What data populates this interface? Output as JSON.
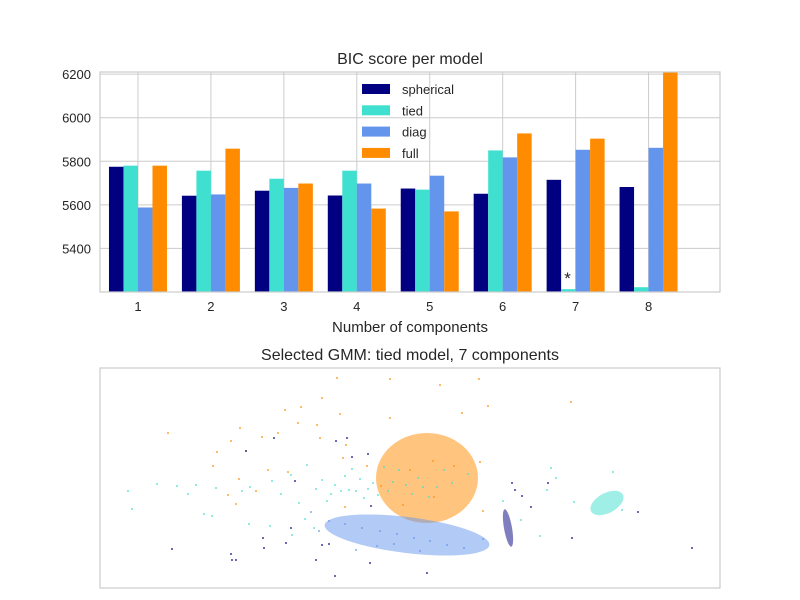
{
  "chart_data": [
    {
      "type": "bar",
      "title": "BIC score per model",
      "xlabel": "Number of components",
      "ylabel": "",
      "categories": [
        "1",
        "2",
        "3",
        "4",
        "5",
        "6",
        "7",
        "8"
      ],
      "yticks": [
        "5400",
        "5600",
        "5800",
        "6000",
        "6200"
      ],
      "ylim": [
        5200,
        6210
      ],
      "grid": true,
      "legend_position": "top-center",
      "series": [
        {
          "name": "spherical",
          "color": "#000080",
          "values": [
            5775,
            5642,
            5665,
            5643,
            5675,
            5651,
            5715,
            5682
          ]
        },
        {
          "name": "tied",
          "color": "#40e0d0",
          "values": [
            5780,
            5757,
            5720,
            5757,
            5670,
            5850,
            5213,
            5222
          ]
        },
        {
          "name": "diag",
          "color": "#6495ed",
          "values": [
            5588,
            5648,
            5678,
            5698,
            5734,
            5818,
            5853,
            5862
          ]
        },
        {
          "name": "full",
          "color": "#ff8c00",
          "values": [
            5780,
            5858,
            5698,
            5583,
            5570,
            5928,
            5904,
            6210
          ]
        }
      ],
      "best_marker": {
        "text": "*",
        "category": "7"
      }
    },
    {
      "type": "scatter",
      "title": "Selected GMM: tied model, 7 components",
      "grid": false,
      "xticks": false,
      "yticks": false
    }
  ]
}
